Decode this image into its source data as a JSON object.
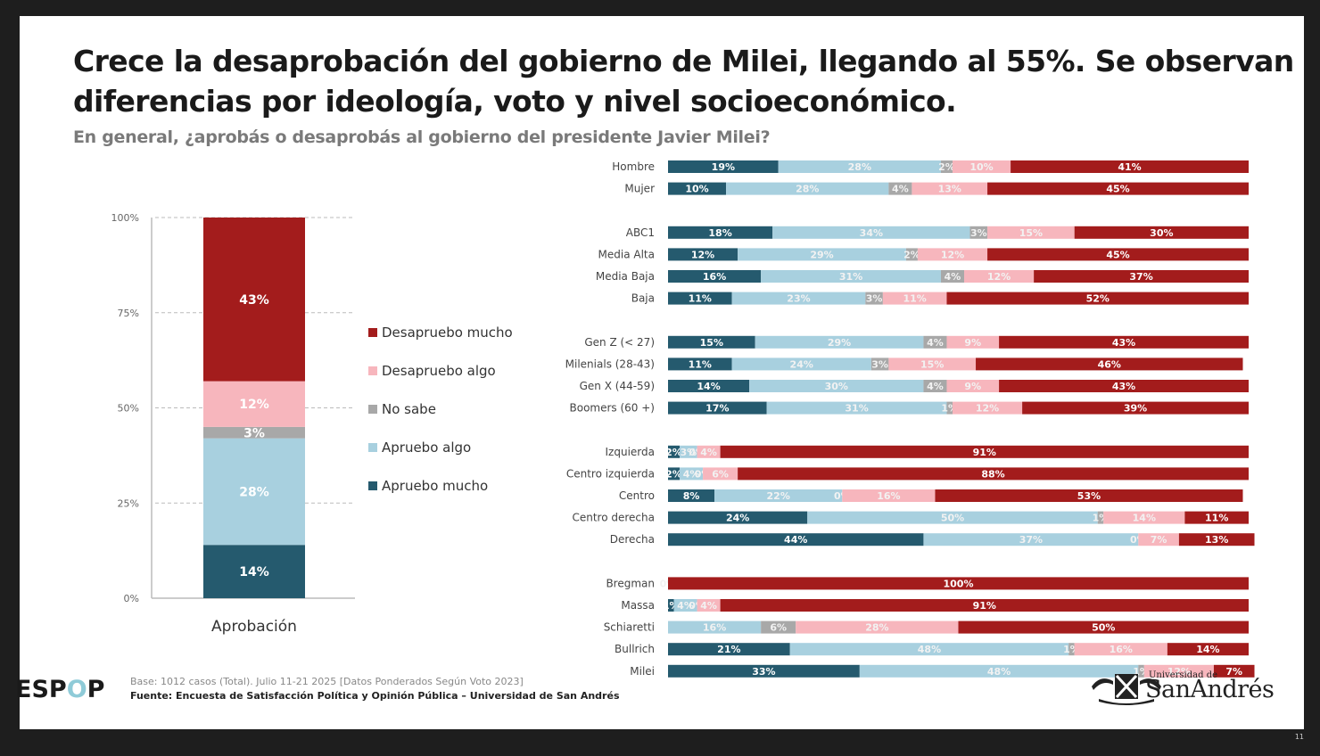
{
  "slide": {
    "title": "Crece la desaprobación del gobierno de Milei, llegando al 55%. Se observan diferencias por ideología, voto y nivel socioeconómico.",
    "subtitle": "En general, ¿aprobás o desaprobás al gobierno del presidente Javier Milei?",
    "footer": {
      "logo": "ESPOP",
      "logo_parts": [
        "ESP",
        "O",
        "P"
      ],
      "base": "Base: 1012 casos (Total). Julio 11-21 2025 [Datos Ponderados Según Voto 2023]",
      "source": "Fuente: Encuesta de Satisfacción Política y Opinión Pública – Universidad de San Andrés",
      "university_small": "Universidad de",
      "university_big": "SanAndrés"
    },
    "page_number": "11"
  },
  "colors": {
    "apruebo_mucho": "#255a6e",
    "apruebo_algo": "#a8d0df",
    "no_sabe": "#a8a8a8",
    "desapruebo_algo": "#f7b6bd",
    "desapruebo_mucho": "#a31c1c"
  },
  "chart_data": [
    {
      "type": "bar",
      "stacked": true,
      "orientation": "vertical",
      "title": "",
      "categories": [
        "Aprobación"
      ],
      "ylim": [
        0,
        100
      ],
      "yticks": [
        "0%",
        "25%",
        "50%",
        "75%",
        "100%"
      ],
      "grid": "dashed",
      "legend_position": "right",
      "series": [
        {
          "name": "Apruebo mucho",
          "key": "apruebo_mucho",
          "values": [
            14
          ],
          "label": [
            "14%"
          ]
        },
        {
          "name": "Apruebo algo",
          "key": "apruebo_algo",
          "values": [
            28
          ],
          "label": [
            "28%"
          ]
        },
        {
          "name": "No sabe",
          "key": "no_sabe",
          "values": [
            3
          ],
          "label": [
            "3%"
          ]
        },
        {
          "name": "Desapruebo algo",
          "key": "desapruebo_algo",
          "values": [
            12
          ],
          "label": [
            "12%"
          ]
        },
        {
          "name": "Desapruebo mucho",
          "key": "desapruebo_mucho",
          "values": [
            43
          ],
          "label": [
            "43%"
          ]
        }
      ],
      "legend": [
        "Desapruebo mucho",
        "Desapruebo algo",
        "No sabe",
        "Apruebo algo",
        "Apruebo mucho"
      ]
    },
    {
      "type": "bar",
      "stacked": true,
      "orientation": "horizontal",
      "title": "",
      "xlim": [
        0,
        100
      ],
      "series_order": [
        "Apruebo mucho",
        "Apruebo algo",
        "No sabe",
        "Desapruebo algo",
        "Desapruebo mucho"
      ],
      "groups": [
        {
          "rows": [
            {
              "label": "Hombre",
              "values": [
                19,
                28,
                2,
                10,
                41
              ]
            },
            {
              "label": "Mujer",
              "values": [
                10,
                28,
                4,
                13,
                45
              ]
            }
          ]
        },
        {
          "rows": [
            {
              "label": "ABC1",
              "values": [
                18,
                34,
                3,
                15,
                30
              ]
            },
            {
              "label": "Media Alta",
              "values": [
                12,
                29,
                2,
                12,
                45
              ]
            },
            {
              "label": "Media Baja",
              "values": [
                16,
                31,
                4,
                12,
                37
              ]
            },
            {
              "label": "Baja",
              "values": [
                11,
                23,
                3,
                11,
                52
              ]
            }
          ]
        },
        {
          "rows": [
            {
              "label": "Gen Z (< 27)",
              "values": [
                15,
                29,
                4,
                9,
                43
              ]
            },
            {
              "label": "Milenials (28-43)",
              "values": [
                11,
                24,
                3,
                15,
                46
              ]
            },
            {
              "label": "Gen X (44-59)",
              "values": [
                14,
                30,
                4,
                9,
                43
              ]
            },
            {
              "label": "Boomers (60 +)",
              "values": [
                17,
                31,
                1,
                12,
                39
              ]
            }
          ]
        },
        {
          "rows": [
            {
              "label": "Izquierda",
              "values": [
                2,
                3,
                0,
                4,
                91
              ]
            },
            {
              "label": "Centro izquierda",
              "values": [
                2,
                4,
                0,
                6,
                88
              ]
            },
            {
              "label": "Centro",
              "values": [
                8,
                22,
                0,
                16,
                53
              ]
            },
            {
              "label": "Centro derecha",
              "values": [
                24,
                50,
                1,
                14,
                11
              ]
            },
            {
              "label": "Derecha",
              "values": [
                44,
                37,
                0,
                7,
                13
              ]
            }
          ]
        },
        {
          "rows": [
            {
              "label": "Bregman",
              "values": [
                0,
                0,
                0,
                0,
                100
              ]
            },
            {
              "label": "Massa",
              "values": [
                1,
                4,
                0,
                4,
                91
              ]
            },
            {
              "label": "Schiaretti",
              "values": [
                0,
                16,
                6,
                28,
                50
              ]
            },
            {
              "label": "Bullrich",
              "values": [
                21,
                48,
                1,
                16,
                14
              ]
            },
            {
              "label": "Milei",
              "values": [
                33,
                48,
                1,
                12,
                7
              ]
            }
          ]
        }
      ]
    }
  ]
}
